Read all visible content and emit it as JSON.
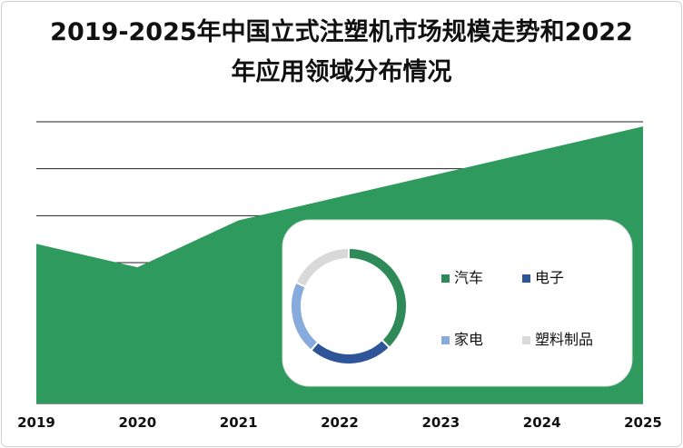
{
  "title_line1": "2019-2025年中国立式注塑机市场规模走势和2022",
  "title_line2": "年应用领域分布情况",
  "chart_data": [
    {
      "type": "area",
      "title": "2019-2025年中国立式注塑机市场规模走势和2022年应用领域分布情况",
      "categories": [
        "2019",
        "2020",
        "2021",
        "2022",
        "2023",
        "2024",
        "2025"
      ],
      "values": [
        3.4,
        2.9,
        3.9,
        4.4,
        4.9,
        5.4,
        5.9
      ],
      "ylim": [
        0,
        6
      ],
      "grid": true,
      "color": "#2e9a5e"
    },
    {
      "type": "pie",
      "donut": true,
      "labels": [
        "汽车",
        "电子",
        "家电",
        "塑料制品"
      ],
      "values": [
        35,
        22,
        19,
        17
      ],
      "colors": [
        "#2e8b57",
        "#2e5597",
        "#86abdc",
        "#d9d9d9"
      ],
      "legend_position": "right"
    }
  ]
}
